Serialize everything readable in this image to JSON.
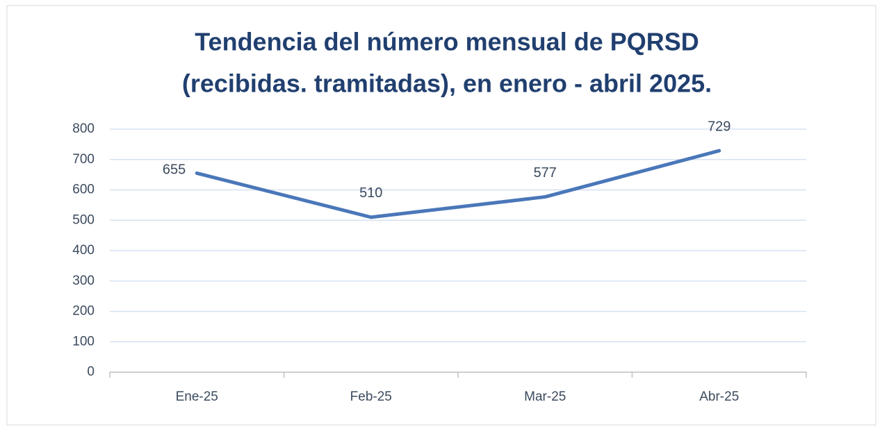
{
  "chart_data": {
    "type": "line",
    "title": [
      "Tendencia del número mensual de PQRSD",
      "(recibidas. tramitadas), en enero - abril 2025."
    ],
    "categories": [
      "Ene-25",
      "Feb-25",
      "Mar-25",
      "Abr-25"
    ],
    "series": [
      {
        "color": "#4a77b9",
        "values": [
          655,
          510,
          577,
          729
        ]
      }
    ],
    "ylim": [
      0,
      800
    ],
    "yticks": [
      0,
      100,
      200,
      300,
      400,
      500,
      600,
      700,
      800
    ],
    "grid": true
  }
}
